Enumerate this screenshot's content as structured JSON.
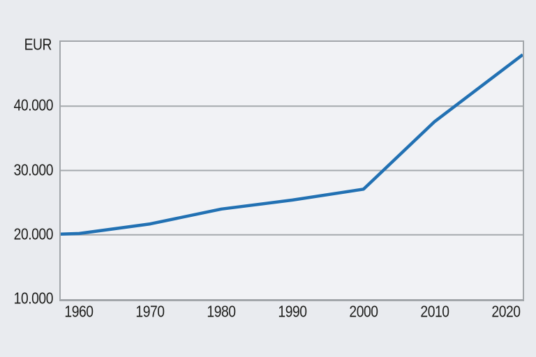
{
  "colors": {
    "page_bg": "#e9ebef",
    "plot_bg": "#f1f2f5",
    "grid": "#a5a9ad",
    "border": "#a2a6aa",
    "text": "#1d1d1b",
    "line": "#2271b3"
  },
  "chart_data": {
    "type": "line",
    "title": "",
    "ylabel": "EUR",
    "xlabel": "",
    "xlim": [
      1957.4,
      2022.4
    ],
    "ylim": [
      10000,
      50000
    ],
    "grid": "horizontal-only",
    "legend": "none",
    "gridlines": [
      20000,
      30000,
      40000
    ],
    "x_ticks": [
      {
        "value": 1960,
        "label": "1960"
      },
      {
        "value": 1970,
        "label": "1970"
      },
      {
        "value": 1980,
        "label": "1980"
      },
      {
        "value": 1990,
        "label": "1990"
      },
      {
        "value": 2000,
        "label": "2000"
      },
      {
        "value": 2010,
        "label": "2010"
      },
      {
        "value": 2020,
        "label": "2020"
      }
    ],
    "y_ticks": [
      {
        "value": 10000,
        "label": "10.000"
      },
      {
        "value": 20000,
        "label": "20.000"
      },
      {
        "value": 30000,
        "label": "30.000"
      },
      {
        "value": 40000,
        "label": "40.000"
      }
    ],
    "series": [
      {
        "name": "EUR",
        "color": "#2271b3",
        "points": [
          {
            "x": 1957.4,
            "y": 20100
          },
          {
            "x": 1960,
            "y": 20200
          },
          {
            "x": 1970,
            "y": 21700
          },
          {
            "x": 1980,
            "y": 24000
          },
          {
            "x": 1990,
            "y": 25400
          },
          {
            "x": 2000,
            "y": 27100
          },
          {
            "x": 2010,
            "y": 37600
          },
          {
            "x": 2022.4,
            "y": 48000
          }
        ]
      }
    ]
  }
}
